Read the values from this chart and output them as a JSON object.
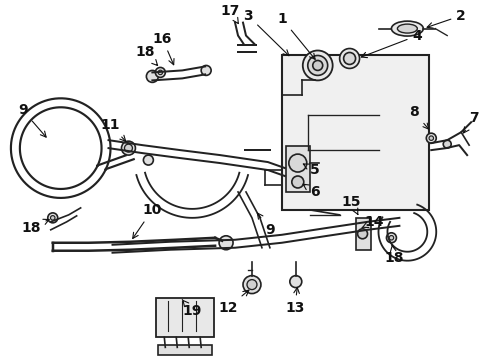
{
  "bg_color": "#ffffff",
  "line_color": "#222222",
  "lw": 1.2,
  "fontsize": 10,
  "dpi": 100,
  "figsize": [
    4.9,
    3.6
  ]
}
